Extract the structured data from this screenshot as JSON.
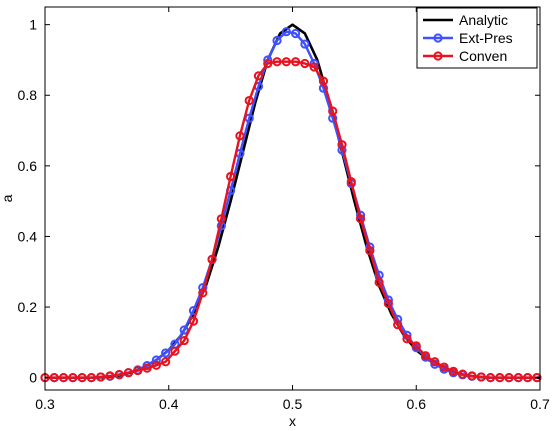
{
  "chart_data": {
    "type": "line",
    "xlabel": "x",
    "ylabel": "a",
    "xlim": [
      0.3,
      0.7
    ],
    "ylim": [
      -0.035,
      1.05
    ],
    "xticks": [
      "0.3",
      "0.4",
      "0.5",
      "0.6",
      "0.7"
    ],
    "yticks": [
      "0",
      "0.2",
      "0.4",
      "0.6",
      "0.8",
      "1"
    ],
    "grid": false,
    "legend_position": "top-right",
    "series": [
      {
        "name": "Analytic",
        "color": "#000000",
        "marker": "none",
        "x": [
          0.3,
          0.31,
          0.32,
          0.33,
          0.34,
          0.35,
          0.36,
          0.37,
          0.38,
          0.39,
          0.4,
          0.41,
          0.42,
          0.43,
          0.44,
          0.45,
          0.46,
          0.47,
          0.48,
          0.49,
          0.5,
          0.51,
          0.52,
          0.53,
          0.54,
          0.55,
          0.56,
          0.57,
          0.58,
          0.59,
          0.6,
          0.61,
          0.62,
          0.63,
          0.64,
          0.65,
          0.66,
          0.67,
          0.68,
          0.69,
          0.7
        ],
        "y": [
          0.0,
          0.0,
          0.0,
          0.0,
          0.0,
          0.002,
          0.006,
          0.015,
          0.03,
          0.05,
          0.078,
          0.12,
          0.18,
          0.26,
          0.37,
          0.5,
          0.64,
          0.78,
          0.9,
          0.975,
          1.0,
          0.975,
          0.9,
          0.78,
          0.64,
          0.5,
          0.37,
          0.26,
          0.18,
          0.12,
          0.078,
          0.05,
          0.03,
          0.015,
          0.006,
          0.002,
          0.0,
          0.0,
          0.0,
          0.0,
          0.0
        ]
      },
      {
        "name": "Ext-Pres",
        "color": "#3f51ff",
        "marker": "circle",
        "x": [
          0.3,
          0.3075,
          0.315,
          0.3225,
          0.33,
          0.3375,
          0.345,
          0.3525,
          0.36,
          0.3675,
          0.375,
          0.3825,
          0.39,
          0.3975,
          0.405,
          0.4125,
          0.42,
          0.4275,
          0.435,
          0.4425,
          0.45,
          0.4575,
          0.465,
          0.4725,
          0.48,
          0.4875,
          0.495,
          0.5025,
          0.51,
          0.5175,
          0.525,
          0.5325,
          0.54,
          0.5475,
          0.555,
          0.5625,
          0.57,
          0.5775,
          0.585,
          0.5925,
          0.6,
          0.6075,
          0.615,
          0.6225,
          0.63,
          0.6375,
          0.645,
          0.6525,
          0.66,
          0.6675,
          0.675,
          0.6825,
          0.69,
          0.6975
        ],
        "y": [
          0.0,
          0.0,
          0.0,
          0.0,
          0.0,
          0.0,
          0.002,
          0.004,
          0.008,
          0.014,
          0.022,
          0.034,
          0.05,
          0.07,
          0.095,
          0.135,
          0.19,
          0.255,
          0.335,
          0.43,
          0.53,
          0.635,
          0.735,
          0.825,
          0.9,
          0.955,
          0.98,
          0.975,
          0.945,
          0.89,
          0.82,
          0.735,
          0.645,
          0.55,
          0.46,
          0.37,
          0.29,
          0.22,
          0.165,
          0.12,
          0.085,
          0.058,
          0.038,
          0.024,
          0.014,
          0.008,
          0.004,
          0.002,
          0.0,
          0.0,
          0.0,
          0.0,
          0.0,
          0.0
        ]
      },
      {
        "name": "Conven",
        "color": "#e8131f",
        "marker": "circle",
        "x": [
          0.3,
          0.3075,
          0.315,
          0.3225,
          0.33,
          0.3375,
          0.345,
          0.3525,
          0.36,
          0.3675,
          0.375,
          0.3825,
          0.39,
          0.3975,
          0.405,
          0.4125,
          0.42,
          0.4275,
          0.435,
          0.4425,
          0.45,
          0.4575,
          0.465,
          0.4725,
          0.48,
          0.4875,
          0.495,
          0.5025,
          0.51,
          0.5175,
          0.525,
          0.5325,
          0.54,
          0.5475,
          0.555,
          0.5625,
          0.57,
          0.5775,
          0.585,
          0.5925,
          0.6,
          0.6075,
          0.615,
          0.6225,
          0.63,
          0.6375,
          0.645,
          0.6525,
          0.66,
          0.6675,
          0.675,
          0.6825,
          0.69,
          0.6975
        ],
        "y": [
          0.0,
          0.0,
          0.0,
          0.0,
          0.0,
          0.0,
          0.002,
          0.005,
          0.009,
          0.014,
          0.02,
          0.027,
          0.035,
          0.045,
          0.075,
          0.105,
          0.16,
          0.24,
          0.335,
          0.45,
          0.57,
          0.685,
          0.785,
          0.855,
          0.89,
          0.895,
          0.895,
          0.895,
          0.89,
          0.88,
          0.84,
          0.755,
          0.66,
          0.555,
          0.45,
          0.36,
          0.27,
          0.21,
          0.15,
          0.11,
          0.09,
          0.062,
          0.045,
          0.03,
          0.018,
          0.01,
          0.005,
          0.002,
          0.0,
          0.0,
          0.0,
          0.0,
          0.0,
          0.0
        ]
      }
    ]
  }
}
